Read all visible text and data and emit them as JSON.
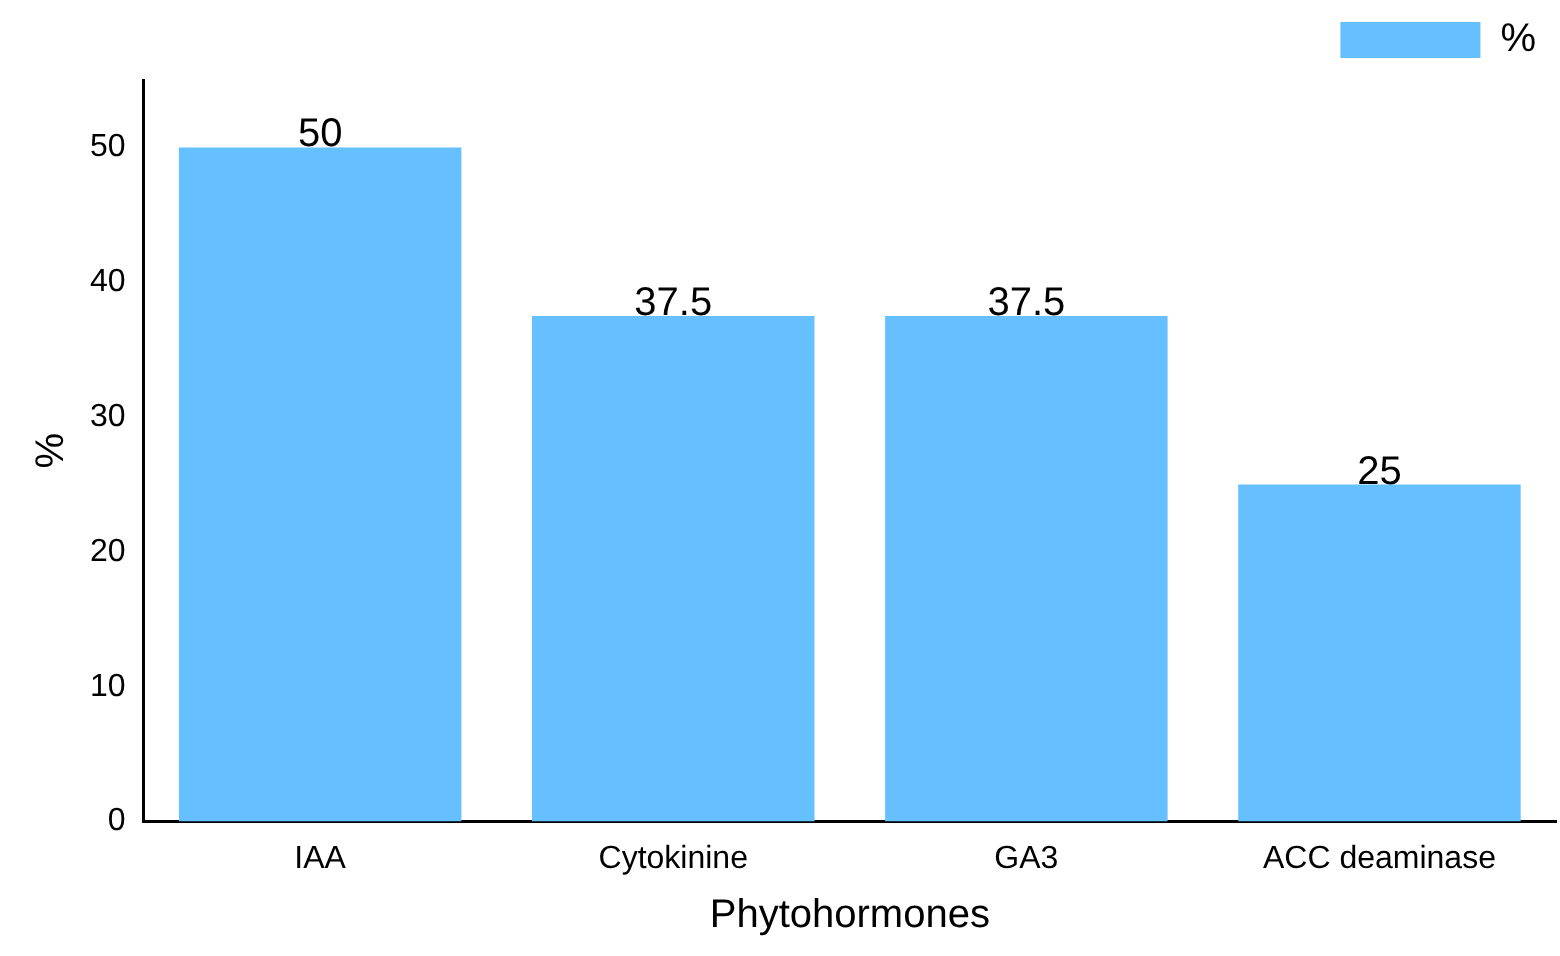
{
  "chart_data": {
    "type": "bar",
    "xlabel": "Phytohormones",
    "ylabel": "%",
    "categories": [
      "IAA",
      "Cytokinine",
      "GA3",
      "ACC deaminase"
    ],
    "series": [
      {
        "name": "%",
        "color": "#66bfff",
        "values": [
          50,
          37.5,
          37.5,
          25
        ]
      }
    ],
    "ylim": [
      0,
      55
    ],
    "yticks": [
      0,
      10,
      20,
      30,
      40,
      50
    ],
    "grid": false,
    "legend": "top right",
    "data_labels": true
  }
}
